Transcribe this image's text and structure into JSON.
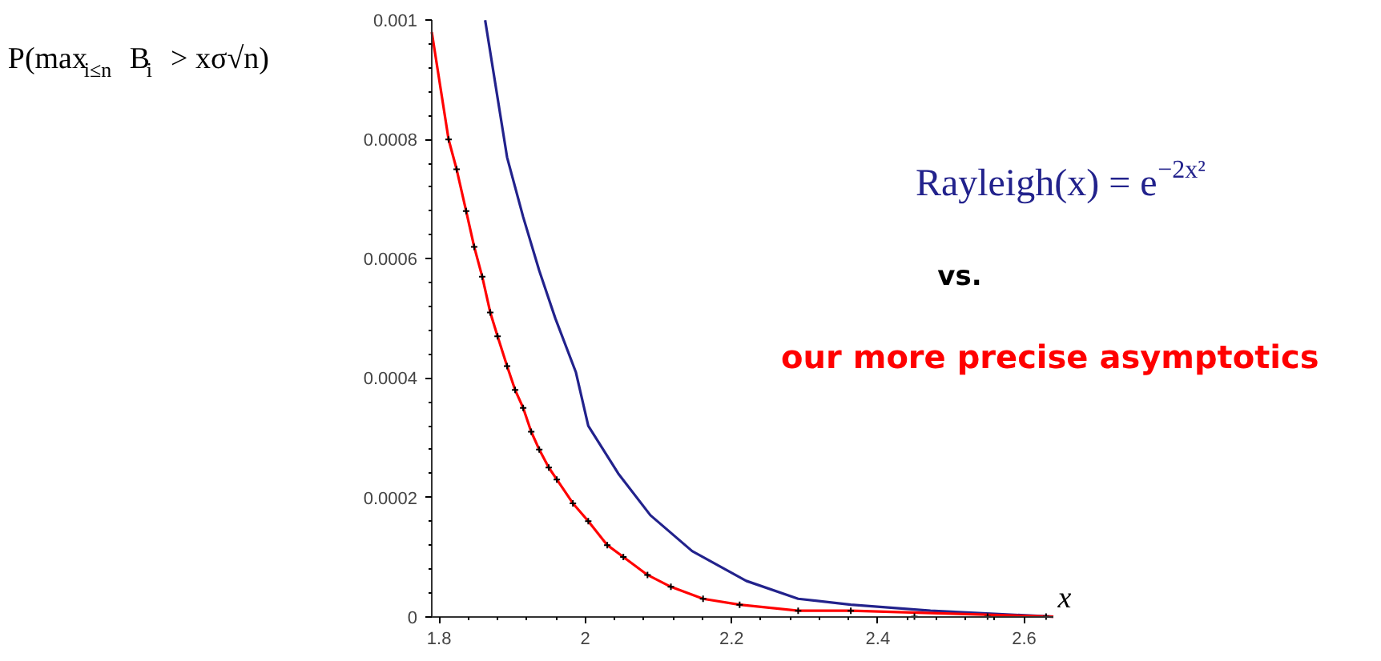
{
  "chart_data": {
    "type": "line",
    "xlabel": "x",
    "ylabel": "P(max$_{i≤n}$ B$_{i}$ > xσ√n)",
    "xlim": [
      1.79,
      2.64
    ],
    "ylim": [
      0,
      0.001
    ],
    "xticks": [
      1.8,
      2,
      2.2,
      2.4,
      2.6
    ],
    "yticks": [
      0,
      0.0002,
      0.0004,
      0.0006,
      0.0008,
      0.001
    ],
    "annotations": [
      "vs."
    ],
    "series": [
      {
        "name": "Rayleigh(x) = e$^{−2x²}$",
        "color": "#22228c",
        "x": [
          1.863,
          1.893,
          1.915,
          1.937,
          1.959,
          1.987,
          2.004,
          2.045,
          2.089,
          2.146,
          2.22,
          2.291,
          2.363,
          2.472,
          2.64
        ],
        "values": [
          0.001,
          0.00077,
          0.00067,
          0.00058,
          0.0005,
          0.00041,
          0.00032,
          0.00024,
          0.00017,
          0.00011,
          6e-05,
          3e-05,
          2e-05,
          1e-05,
          0
        ]
      },
      {
        "name": "our more precise asymptotics",
        "color": "#ff0000",
        "x": [
          1.79,
          1.813,
          1.824,
          1.837,
          1.848,
          1.859,
          1.87,
          1.88,
          1.893,
          1.904,
          1.915,
          1.926,
          1.937,
          1.95,
          1.961,
          1.983,
          2.004,
          2.03,
          2.052,
          2.085,
          2.117,
          2.161,
          2.211,
          2.291,
          2.363,
          2.64
        ],
        "values": [
          0.00098,
          0.0008,
          0.00075,
          0.00068,
          0.00062,
          0.00057,
          0.00051,
          0.00047,
          0.00042,
          0.00038,
          0.00035,
          0.00031,
          0.00028,
          0.00025,
          0.00023,
          0.00019,
          0.00016,
          0.00012,
          0.0001,
          7e-05,
          5e-05,
          3e-05,
          2e-05,
          1e-05,
          1e-05,
          0
        ]
      },
      {
        "color": "#000000",
        "type": "scatter",
        "marker": "cross",
        "x": [
          1.813,
          1.824,
          1.837,
          1.848,
          1.859,
          1.87,
          1.88,
          1.893,
          1.904,
          1.915,
          1.926,
          1.937,
          1.95,
          1.961,
          1.983,
          2.004,
          2.03,
          2.052,
          2.085,
          2.117,
          2.161,
          2.211,
          2.291,
          2.363,
          2.45,
          2.55,
          2.63
        ],
        "values": [
          0.0008,
          0.00075,
          0.00068,
          0.00062,
          0.00057,
          0.00051,
          0.00047,
          0.00042,
          0.00038,
          0.00035,
          0.00031,
          0.00028,
          0.00025,
          0.00023,
          0.00019,
          0.00016,
          0.00012,
          0.0001,
          7e-05,
          5e-05,
          3e-05,
          2e-05,
          1e-05,
          1e-05,
          0,
          0,
          0
        ]
      }
    ]
  }
}
